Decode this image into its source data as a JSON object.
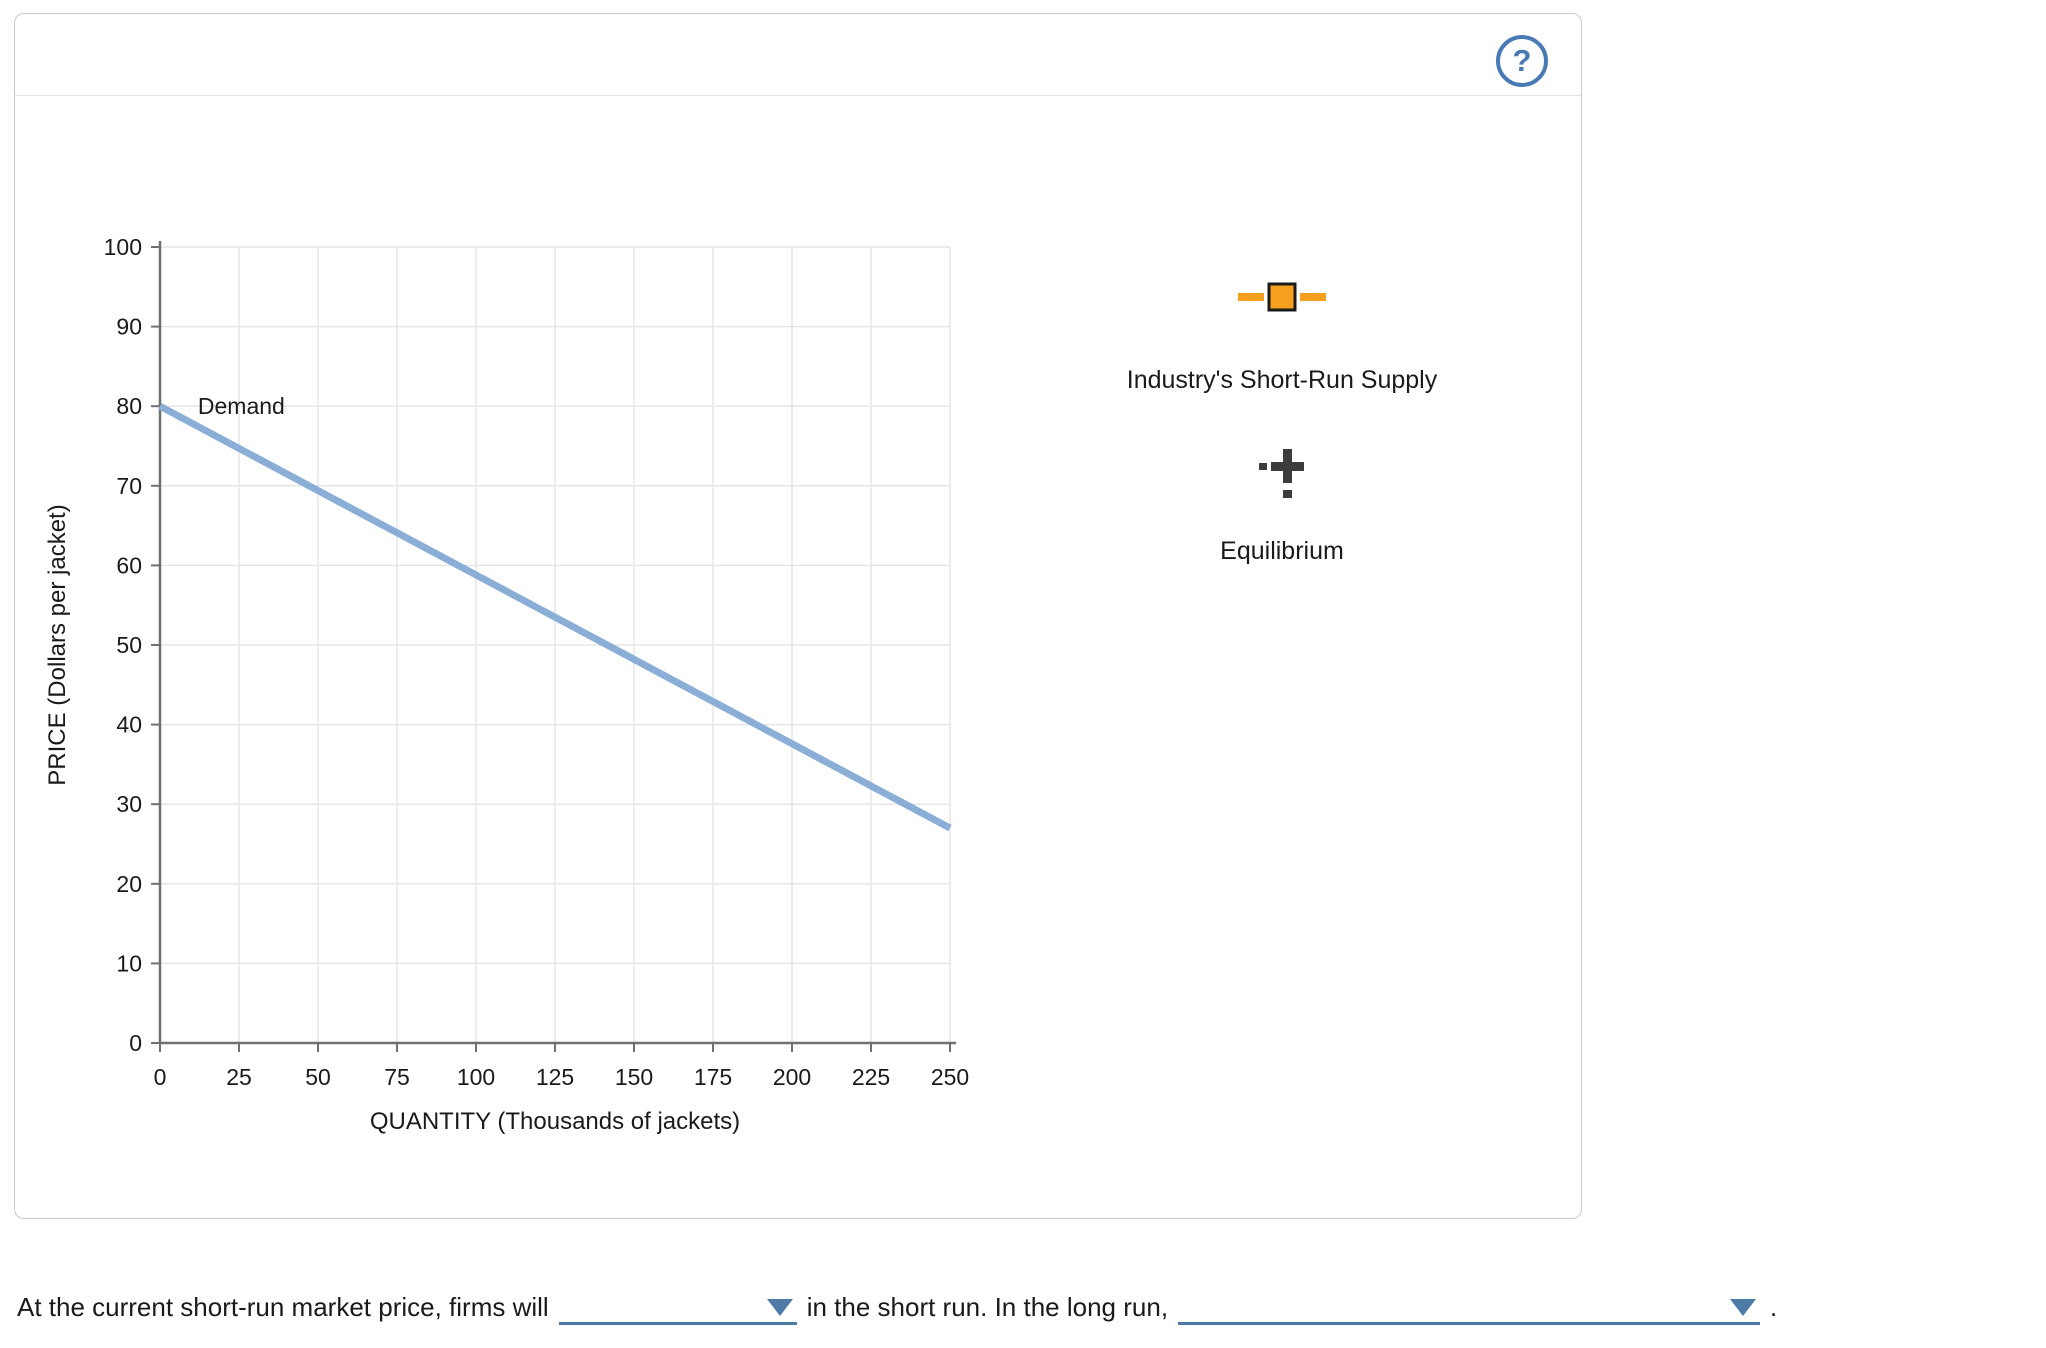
{
  "panel": {
    "help_icon": "?"
  },
  "colors": {
    "supply_marker": "#f59f1e",
    "equilibrium_marker": "#3c3c3c",
    "dropdown_accent": "#4e7ba6",
    "help_icon": "#4a7ab5"
  },
  "chart_data": {
    "type": "line",
    "title": "",
    "xlabel": "QUANTITY (Thousands of jackets)",
    "ylabel": "PRICE (Dollars per jacket)",
    "xlim": [
      0,
      250
    ],
    "ylim": [
      0,
      100
    ],
    "x_ticks": [
      0,
      25,
      50,
      75,
      100,
      125,
      150,
      175,
      200,
      225,
      250
    ],
    "y_ticks": [
      0,
      10,
      20,
      30,
      40,
      50,
      60,
      70,
      80,
      90,
      100
    ],
    "grid": true,
    "legend_position": "right",
    "series": [
      {
        "name": "Demand",
        "label": "Demand",
        "color": "#8aaed6",
        "points": [
          [
            0,
            80
          ],
          [
            250,
            27
          ]
        ],
        "label_pos": [
          12,
          79
        ]
      }
    ]
  },
  "legend": {
    "supply_label": "Industry's Short-Run Supply",
    "equilibrium_label": "Equilibrium"
  },
  "question": {
    "text_before_dropdown1": "At the current short-run market price, firms will",
    "dropdown1_value": "",
    "text_between": "in the short run. In the long run,",
    "dropdown2_value": "",
    "text_end": "."
  }
}
